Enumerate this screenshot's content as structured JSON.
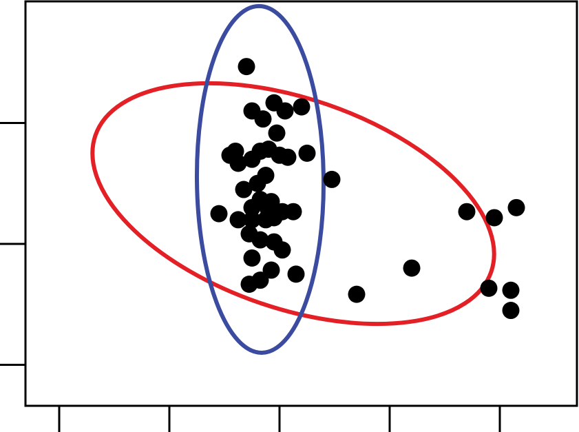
{
  "chart_data": {
    "type": "scatter",
    "title": "",
    "xlabel": "",
    "ylabel": "",
    "xlim": [
      0,
      100
    ],
    "ylim": [
      0,
      100
    ],
    "x_ticks": [
      6,
      26,
      46,
      66,
      86
    ],
    "y_ticks": [
      10,
      40,
      70
    ],
    "grid": false,
    "legend": "none",
    "points": [
      [
        40,
        84
      ],
      [
        41,
        73
      ],
      [
        45,
        75
      ],
      [
        47,
        73
      ],
      [
        50,
        74
      ],
      [
        43,
        71
      ],
      [
        45.5,
        67.5
      ],
      [
        37,
        62
      ],
      [
        38,
        63
      ],
      [
        38.5,
        60
      ],
      [
        41,
        61
      ],
      [
        42.5,
        63
      ],
      [
        44,
        63.5
      ],
      [
        46,
        62
      ],
      [
        47.5,
        61.5
      ],
      [
        51,
        62.5
      ],
      [
        55.5,
        56
      ],
      [
        43.5,
        57
      ],
      [
        42,
        55
      ],
      [
        39.5,
        53.5
      ],
      [
        42.5,
        51
      ],
      [
        44.5,
        50.5
      ],
      [
        41,
        49
      ],
      [
        44,
        48.5
      ],
      [
        46.5,
        48
      ],
      [
        48.5,
        48
      ],
      [
        35,
        47.5
      ],
      [
        38.5,
        46
      ],
      [
        41,
        46
      ],
      [
        43.5,
        46
      ],
      [
        45,
        46.5
      ],
      [
        40.5,
        42.5
      ],
      [
        42.5,
        41
      ],
      [
        45,
        40.5
      ],
      [
        46.5,
        38.5
      ],
      [
        41,
        36.5
      ],
      [
        44.5,
        33.5
      ],
      [
        49,
        32.5
      ],
      [
        42.5,
        31
      ],
      [
        40.5,
        30
      ],
      [
        60,
        27.5
      ],
      [
        70,
        34
      ],
      [
        80,
        48
      ],
      [
        85,
        46.5
      ],
      [
        89,
        49
      ],
      [
        84,
        29
      ],
      [
        88,
        28.5
      ],
      [
        88,
        23.5
      ]
    ],
    "point_color": "#000000",
    "ellipses": [
      {
        "cx": 48.5,
        "cy": 50,
        "rx": 38,
        "ry": 26,
        "rotation_deg": 19,
        "color": "#e32026"
      },
      {
        "cx": 42.5,
        "cy": 56,
        "rx": 11.5,
        "ry": 43,
        "rotation_deg": -0.5,
        "color": "#3a4ba0"
      }
    ]
  }
}
